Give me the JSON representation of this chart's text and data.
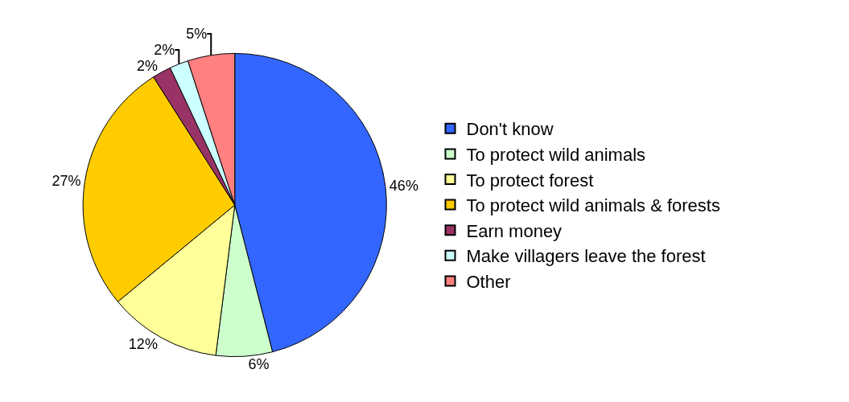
{
  "chart_data": {
    "type": "pie",
    "categories": [
      "Don't know",
      "To protect wild animals",
      "To protect forest",
      "To protect wild animals & forests",
      "Earn money",
      "Make villagers leave the forest",
      "Other"
    ],
    "values": [
      46,
      6,
      12,
      27,
      2,
      2,
      5
    ],
    "value_labels": [
      "46%",
      "6%",
      "12%",
      "27%",
      "2%",
      "2%",
      "5%"
    ],
    "colors": [
      "#3366ff",
      "#ccffcc",
      "#ffff99",
      "#ffcc00",
      "#993366",
      "#ccffff",
      "#ff8080"
    ],
    "legend": "right"
  }
}
